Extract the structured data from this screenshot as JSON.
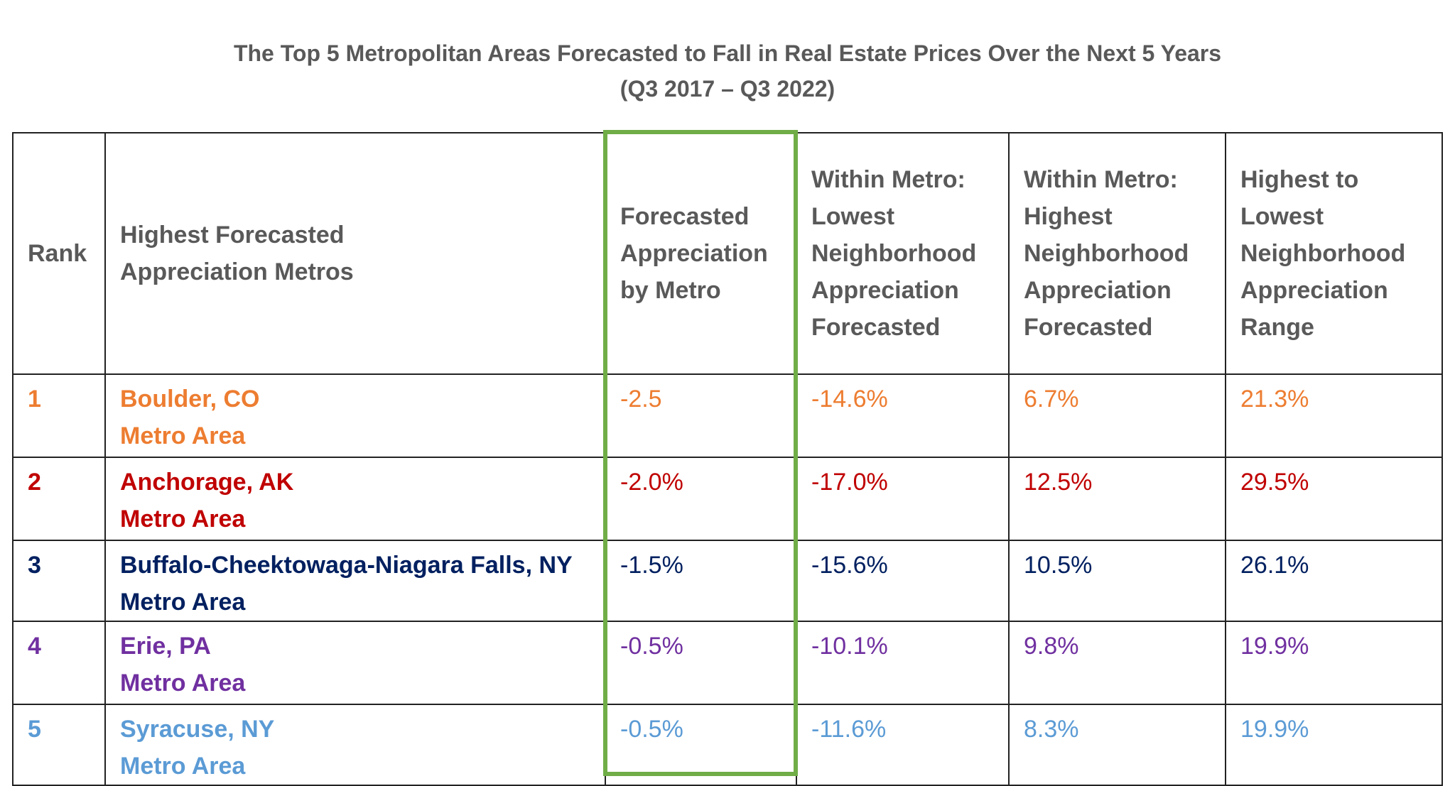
{
  "title": {
    "line1": "The Top 5 Metropolitan Areas Forecasted to Fall in Real Estate Prices Over the Next 5 Years",
    "line2": "(Q3 2017 – Q3 2022)"
  },
  "colors": {
    "highlight": "#70ad47",
    "header_text": "#595959"
  },
  "headers": [
    [
      "Rank"
    ],
    [
      "Highest Forecasted",
      "Appreciation Metros"
    ],
    [
      "Forecasted",
      "Appreciation",
      "by Metro"
    ],
    [
      "Within Metro:",
      "Lowest",
      "Neighborhood",
      "Appreciation",
      "Forecasted"
    ],
    [
      "Within Metro:",
      "Highest",
      "Neighborhood",
      "Appreciation",
      "Forecasted"
    ],
    [
      "Highest to",
      "Lowest",
      "Neighborhood",
      "Appreciation",
      "Range"
    ]
  ],
  "rows": [
    {
      "rank": "1",
      "metro": "Boulder, CO",
      "metro2": "Metro Area",
      "metro_appr": "-2.5",
      "lowest": "-14.6%",
      "highest": "6.7%",
      "range": "21.3%",
      "color": "#ed7d31"
    },
    {
      "rank": "2",
      "metro": "Anchorage, AK",
      "metro2": "Metro Area",
      "metro_appr": "-2.0%",
      "lowest": "-17.0%",
      "highest": "12.5%",
      "range": "29.5%",
      "color": "#c00000"
    },
    {
      "rank": "3",
      "metro": "Buffalo-Cheektowaga-Niagara Falls, NY",
      "metro2": "Metro Area",
      "metro_appr": "-1.5%",
      "lowest": "-15.6%",
      "highest": "10.5%",
      "range": "26.1%",
      "color": "#002060"
    },
    {
      "rank": "4",
      "metro": "Erie, PA",
      "metro2": "Metro Area",
      "metro_appr": "-0.5%",
      "lowest": "-10.1%",
      "highest": "9.8%",
      "range": "19.9%",
      "color": "#7030a0"
    },
    {
      "rank": "5",
      "metro": "Syracuse, NY",
      "metro2": "Metro Area",
      "metro_appr": "-0.5%",
      "lowest": "-11.6%",
      "highest": "8.3%",
      "range": "19.9%",
      "color": "#5b9bd5"
    }
  ]
}
